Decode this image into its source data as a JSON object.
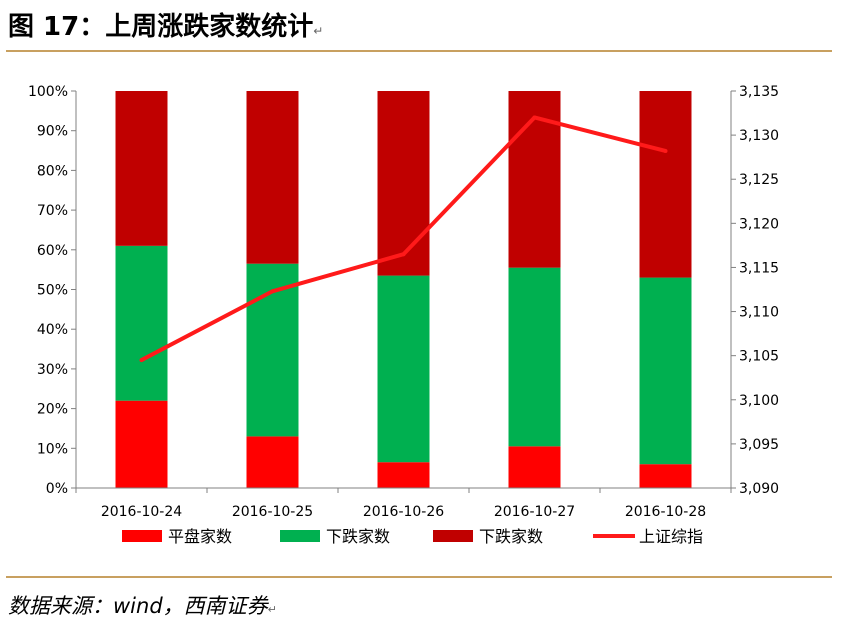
{
  "page": {
    "title": "图 17：上周涨跌家数统计",
    "source": "数据来源：wind，西南证券"
  },
  "chart_data": {
    "type": "bar",
    "stacked": true,
    "categories": [
      "2016-10-24",
      "2016-10-25",
      "2016-10-26",
      "2016-10-27",
      "2016-10-28"
    ],
    "series": [
      {
        "name": "平盘家数",
        "color": "#ff0000",
        "values": [
          22,
          13,
          6.5,
          10.5,
          6
        ]
      },
      {
        "name": "下跌家数",
        "color": "#00b050",
        "values": [
          39,
          43.5,
          47,
          45,
          47
        ]
      },
      {
        "name": "下跌家数",
        "color": "#c00000",
        "values": [
          39,
          43.5,
          46.5,
          44.5,
          47
        ]
      }
    ],
    "line": {
      "name": "上证综指",
      "color": "#ff1a1a",
      "axis": "right",
      "values": [
        3104.5,
        3112.3,
        3116.5,
        3132.0,
        3128.2
      ]
    },
    "y_left": {
      "min": 0,
      "max": 100,
      "ticks": [
        "0%",
        "10%",
        "20%",
        "30%",
        "40%",
        "50%",
        "60%",
        "70%",
        "80%",
        "90%",
        "100%"
      ]
    },
    "y_right": {
      "min": 3090,
      "max": 3135,
      "ticks": [
        "3,090",
        "3,095",
        "3,100",
        "3,105",
        "3,110",
        "3,115",
        "3,120",
        "3,125",
        "3,130",
        "3,135"
      ]
    },
    "legend_position": "bottom",
    "grid": false
  }
}
